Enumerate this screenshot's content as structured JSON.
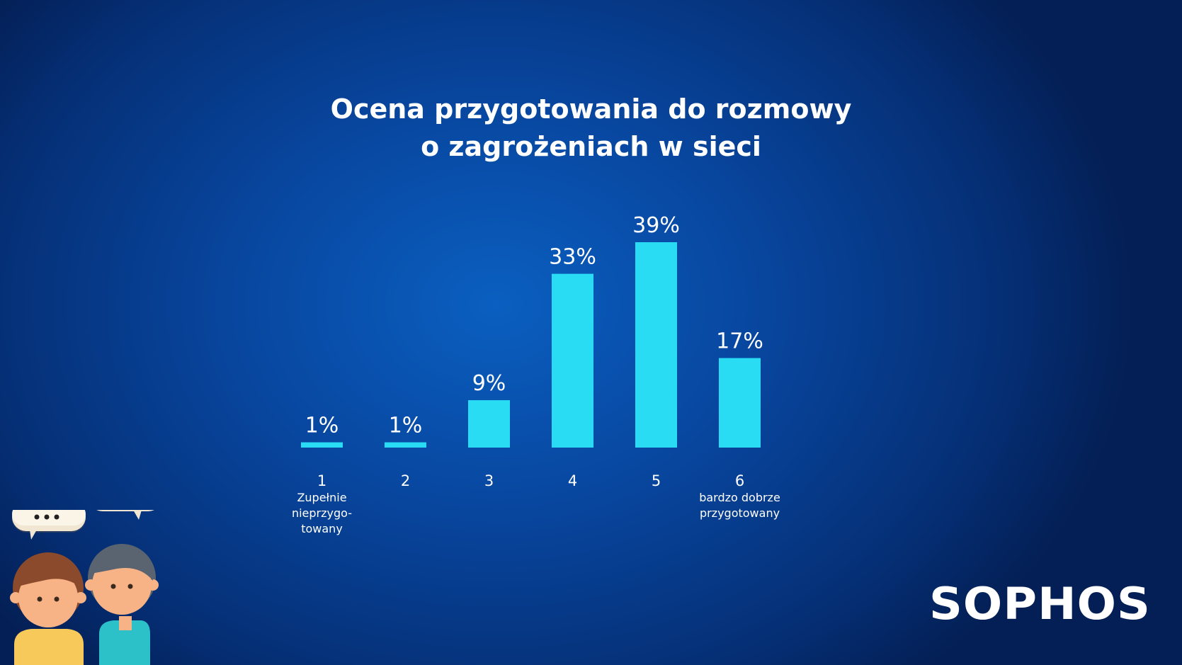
{
  "title_lines": [
    "Ocena przygotowania do rozmowy",
    "o zagrożeniach w sieci"
  ],
  "brand": "SOPHOS",
  "colors": {
    "bar": "#29dcf3",
    "text": "#ffffff",
    "background": "#0847a0"
  },
  "categories": [
    {
      "num": "1",
      "desc": "Zupełnie\nnieprzygo-\ntowany"
    },
    {
      "num": "2",
      "desc": ""
    },
    {
      "num": "3",
      "desc": ""
    },
    {
      "num": "4",
      "desc": ""
    },
    {
      "num": "5",
      "desc": ""
    },
    {
      "num": "6",
      "desc": "bardzo dobrze\nprzygotowany"
    }
  ],
  "chart_data": {
    "type": "bar",
    "title": "Ocena przygotowania do rozmowy o zagrożeniach w sieci",
    "categories": [
      "1",
      "2",
      "3",
      "4",
      "5",
      "6"
    ],
    "values": [
      1,
      1,
      9,
      33,
      39,
      17
    ],
    "value_labels": [
      "1%",
      "1%",
      "9%",
      "33%",
      "39%",
      "17%"
    ],
    "unit": "%",
    "ylim": [
      0,
      39
    ],
    "grid": false,
    "legend": "none"
  },
  "icons": [
    "speech-bubble-icon",
    "speech-bubble-icon",
    "girl-avatar-icon",
    "boy-avatar-icon"
  ]
}
